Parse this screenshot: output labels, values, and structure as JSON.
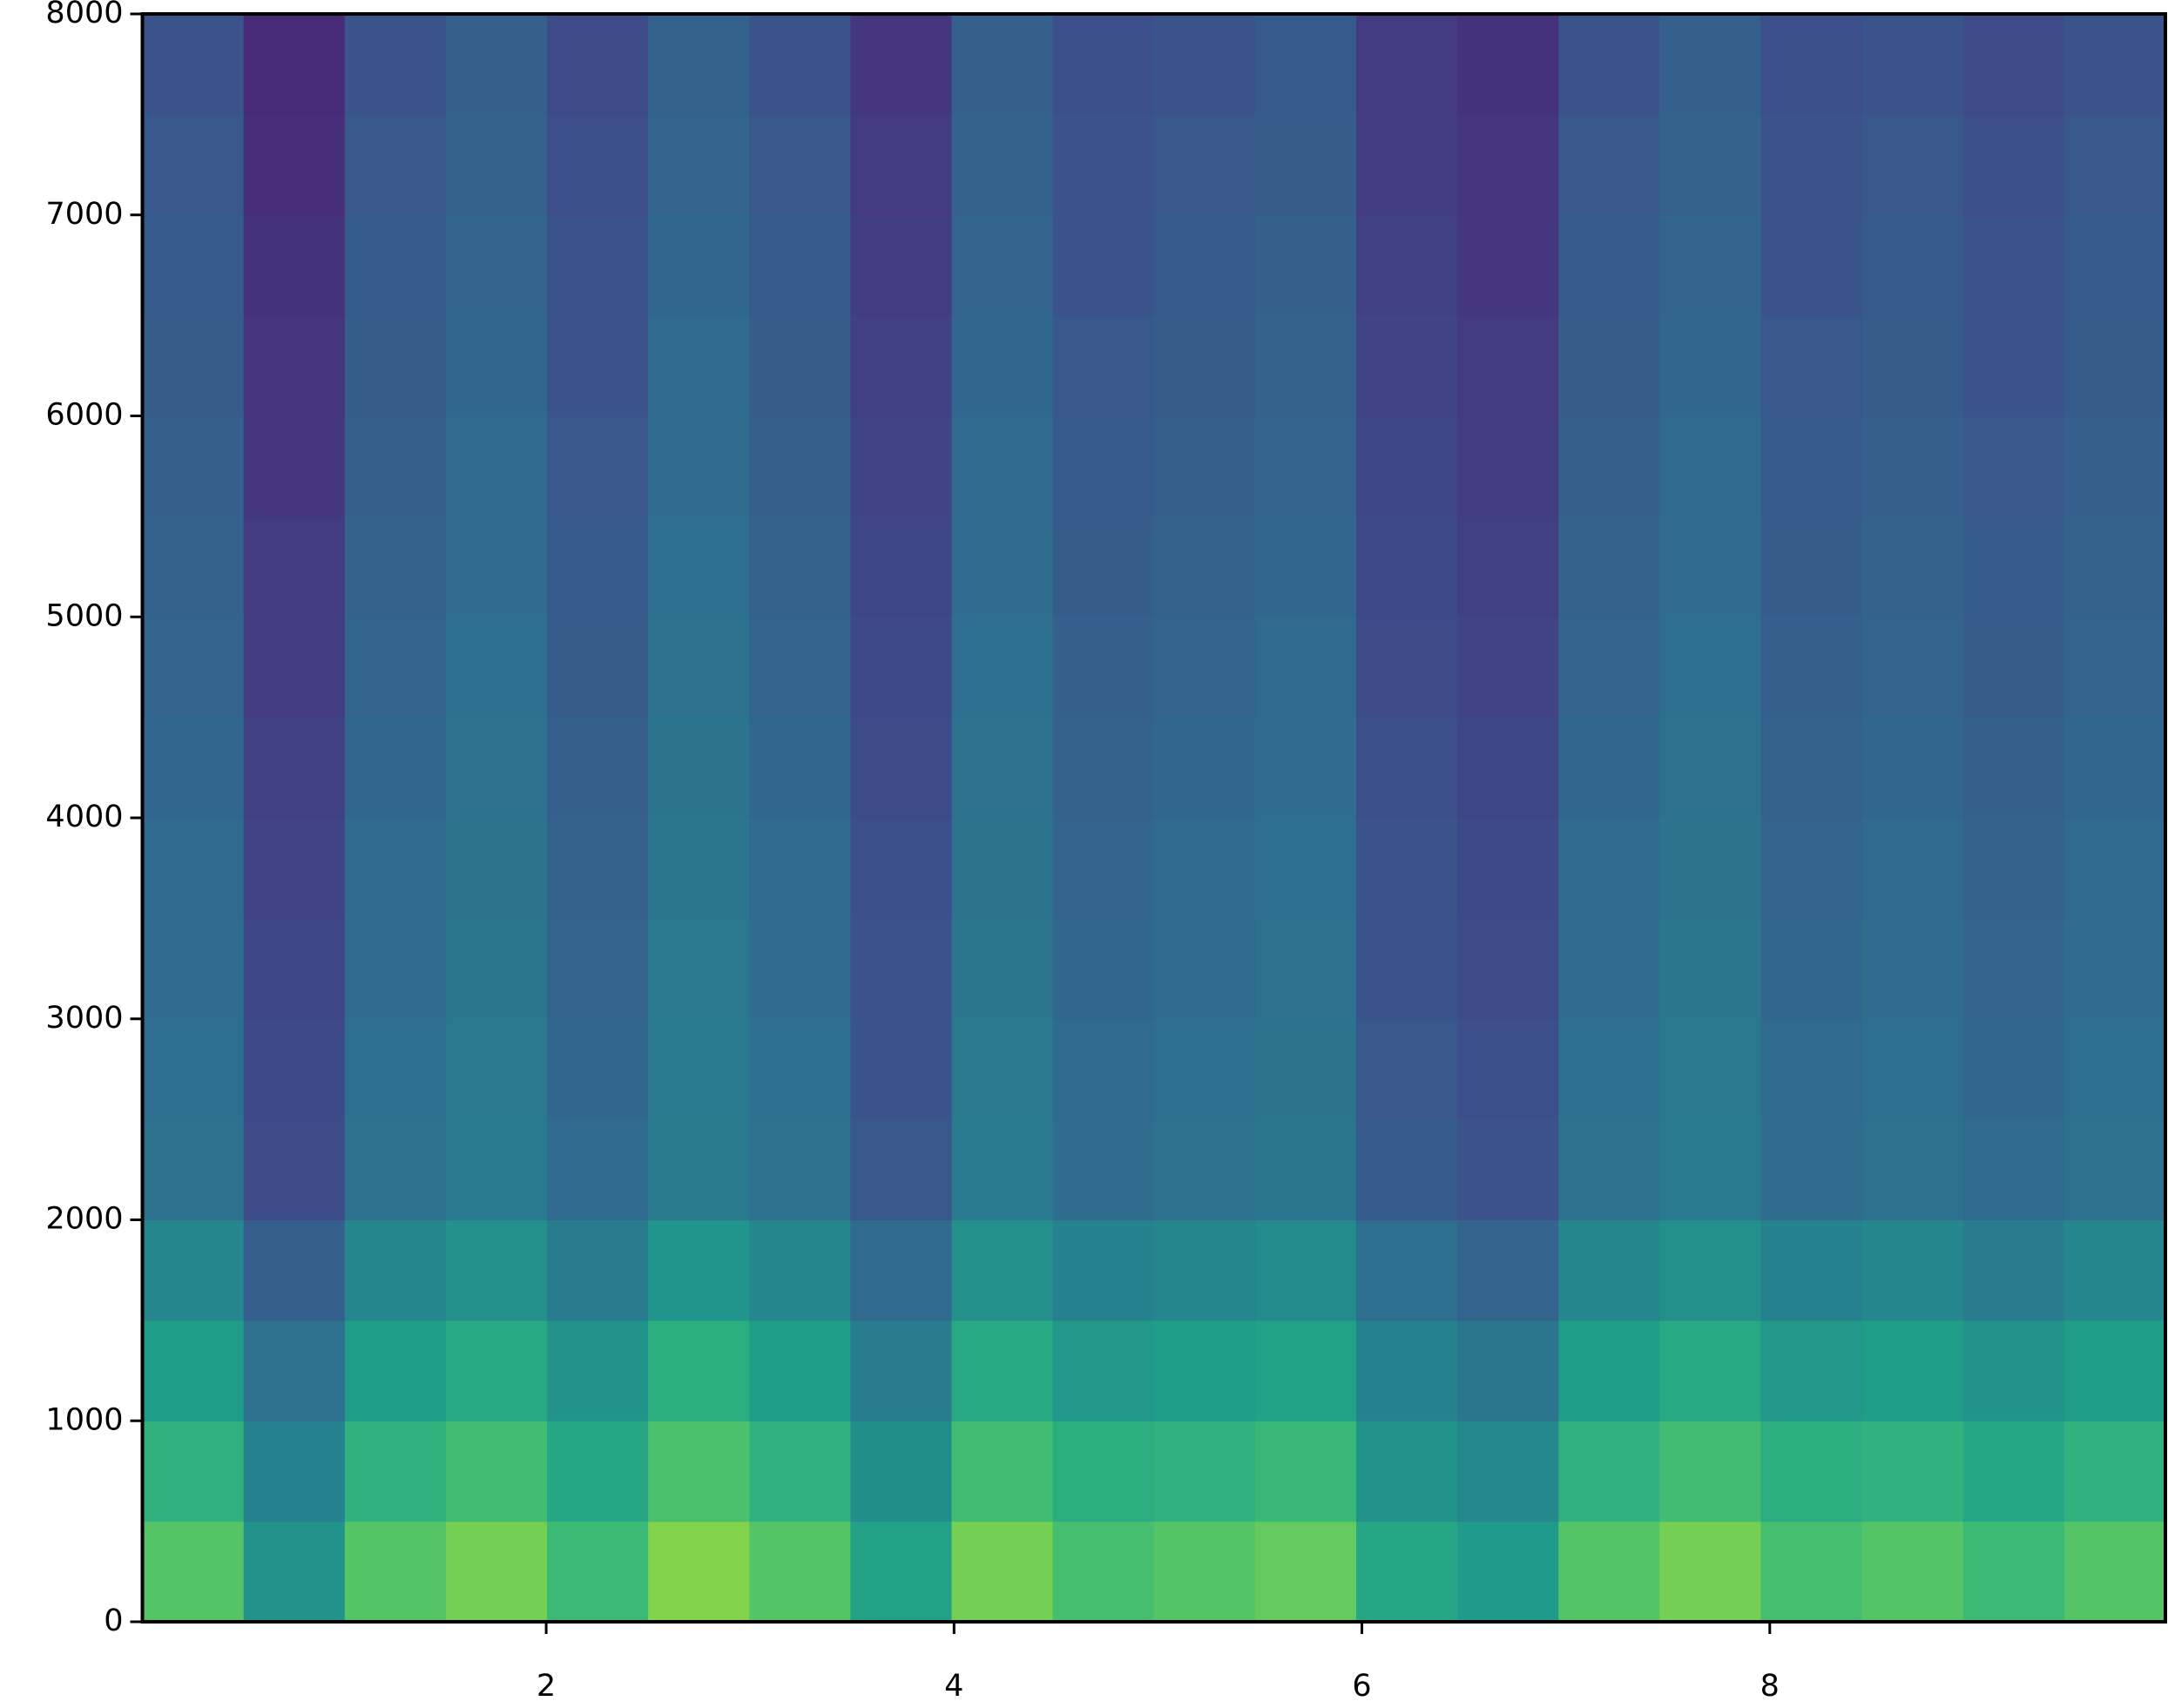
{
  "chart_data": {
    "type": "spectrogram",
    "colormap": "viridis",
    "xlim": [
      0.02,
      9.94
    ],
    "ylim": [
      0,
      8000
    ],
    "xticks": [
      2,
      4,
      6,
      8
    ],
    "yticks": [
      0,
      1000,
      2000,
      3000,
      4000,
      5000,
      6000,
      7000,
      8000
    ],
    "z": [
      [
        0.73,
        0.51,
        0.73,
        0.79,
        0.68,
        0.81,
        0.73,
        0.57,
        0.79,
        0.7,
        0.73,
        0.76,
        0.59,
        0.54,
        0.73,
        0.79,
        0.7,
        0.73,
        0.68,
        0.73
      ],
      [
        0.64,
        0.44,
        0.64,
        0.69,
        0.59,
        0.71,
        0.64,
        0.49,
        0.69,
        0.62,
        0.64,
        0.67,
        0.51,
        0.47,
        0.64,
        0.69,
        0.62,
        0.64,
        0.59,
        0.64
      ],
      [
        0.55,
        0.37,
        0.55,
        0.6,
        0.51,
        0.62,
        0.55,
        0.42,
        0.6,
        0.53,
        0.55,
        0.57,
        0.44,
        0.39,
        0.55,
        0.6,
        0.53,
        0.55,
        0.51,
        0.55
      ],
      [
        0.46,
        0.3,
        0.46,
        0.5,
        0.42,
        0.52,
        0.46,
        0.34,
        0.5,
        0.44,
        0.46,
        0.48,
        0.36,
        0.32,
        0.46,
        0.5,
        0.44,
        0.46,
        0.42,
        0.46
      ],
      [
        0.37,
        0.23,
        0.37,
        0.41,
        0.34,
        0.42,
        0.37,
        0.27,
        0.41,
        0.35,
        0.37,
        0.39,
        0.28,
        0.25,
        0.37,
        0.41,
        0.35,
        0.37,
        0.34,
        0.37
      ],
      [
        0.36,
        0.22,
        0.36,
        0.4,
        0.33,
        0.41,
        0.36,
        0.26,
        0.4,
        0.34,
        0.36,
        0.38,
        0.27,
        0.24,
        0.36,
        0.4,
        0.34,
        0.36,
        0.33,
        0.36
      ],
      [
        0.35,
        0.21,
        0.35,
        0.39,
        0.32,
        0.4,
        0.35,
        0.25,
        0.39,
        0.33,
        0.35,
        0.37,
        0.26,
        0.23,
        0.35,
        0.39,
        0.33,
        0.35,
        0.32,
        0.35
      ],
      [
        0.34,
        0.2,
        0.34,
        0.38,
        0.31,
        0.39,
        0.34,
        0.24,
        0.38,
        0.32,
        0.34,
        0.36,
        0.25,
        0.22,
        0.34,
        0.38,
        0.32,
        0.34,
        0.31,
        0.34
      ],
      [
        0.33,
        0.19,
        0.33,
        0.37,
        0.3,
        0.38,
        0.33,
        0.23,
        0.37,
        0.31,
        0.33,
        0.35,
        0.24,
        0.21,
        0.33,
        0.37,
        0.31,
        0.33,
        0.3,
        0.33
      ],
      [
        0.32,
        0.18,
        0.32,
        0.36,
        0.29,
        0.37,
        0.32,
        0.22,
        0.36,
        0.3,
        0.32,
        0.34,
        0.23,
        0.2,
        0.32,
        0.36,
        0.3,
        0.32,
        0.29,
        0.32
      ],
      [
        0.31,
        0.17,
        0.31,
        0.35,
        0.28,
        0.36,
        0.31,
        0.21,
        0.35,
        0.29,
        0.31,
        0.33,
        0.22,
        0.19,
        0.31,
        0.35,
        0.29,
        0.31,
        0.28,
        0.31
      ],
      [
        0.3,
        0.16,
        0.3,
        0.34,
        0.27,
        0.35,
        0.3,
        0.2,
        0.34,
        0.28,
        0.3,
        0.32,
        0.21,
        0.18,
        0.3,
        0.34,
        0.28,
        0.3,
        0.27,
        0.3
      ],
      [
        0.29,
        0.15,
        0.29,
        0.33,
        0.26,
        0.34,
        0.29,
        0.19,
        0.33,
        0.27,
        0.29,
        0.31,
        0.2,
        0.17,
        0.29,
        0.33,
        0.27,
        0.29,
        0.26,
        0.29
      ],
      [
        0.28,
        0.14,
        0.28,
        0.32,
        0.25,
        0.33,
        0.28,
        0.18,
        0.32,
        0.26,
        0.28,
        0.3,
        0.19,
        0.16,
        0.28,
        0.32,
        0.26,
        0.28,
        0.25,
        0.28
      ],
      [
        0.27,
        0.13,
        0.27,
        0.31,
        0.24,
        0.32,
        0.27,
        0.17,
        0.31,
        0.25,
        0.27,
        0.29,
        0.18,
        0.15,
        0.27,
        0.31,
        0.25,
        0.27,
        0.24,
        0.27
      ],
      [
        0.26,
        0.12,
        0.26,
        0.3,
        0.23,
        0.31,
        0.26,
        0.16,
        0.3,
        0.24,
        0.26,
        0.28,
        0.17,
        0.14,
        0.26,
        0.3,
        0.24,
        0.26,
        0.23,
        0.26
      ]
    ]
  }
}
